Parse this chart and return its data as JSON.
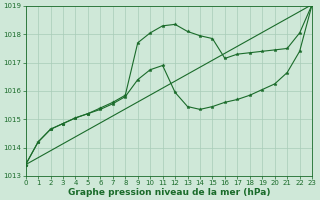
{
  "background_color": "#cfe8d8",
  "grid_color": "#a8ccb8",
  "line_color": "#1a6b2a",
  "marker_color": "#1a6b2a",
  "xlabel": "Graphe pression niveau de la mer (hPa)",
  "xlim": [
    0,
    23
  ],
  "ylim": [
    1013,
    1019
  ],
  "yticks": [
    1013,
    1014,
    1015,
    1016,
    1017,
    1018,
    1019
  ],
  "xticks": [
    0,
    1,
    2,
    3,
    4,
    5,
    6,
    7,
    8,
    9,
    10,
    11,
    12,
    13,
    14,
    15,
    16,
    17,
    18,
    19,
    20,
    21,
    22,
    23
  ],
  "series1_y": [
    1013.4,
    1014.2,
    1014.65,
    1014.85,
    1015.05,
    1015.2,
    1015.4,
    1015.6,
    1015.85,
    1017.7,
    1018.05,
    1018.3,
    1018.35,
    1018.1,
    1017.95,
    1017.85,
    1017.15,
    1017.3,
    1017.35,
    1017.4,
    1017.45,
    1017.5,
    1018.05,
    1019.05
  ],
  "series2_y": [
    1013.4,
    1014.2,
    1014.65,
    1014.85,
    1015.05,
    1015.2,
    1015.35,
    1015.55,
    1015.8,
    1016.4,
    1016.75,
    1016.9,
    1015.95,
    1015.45,
    1015.35,
    1015.45,
    1015.6,
    1015.7,
    1015.85,
    1016.05,
    1016.25,
    1016.65,
    1017.4,
    1019.05
  ],
  "series3_y": [
    1013.4,
    1019.05
  ],
  "series3_x": [
    0,
    23
  ],
  "xlabel_fontsize": 6.5,
  "tick_fontsize": 5.0
}
